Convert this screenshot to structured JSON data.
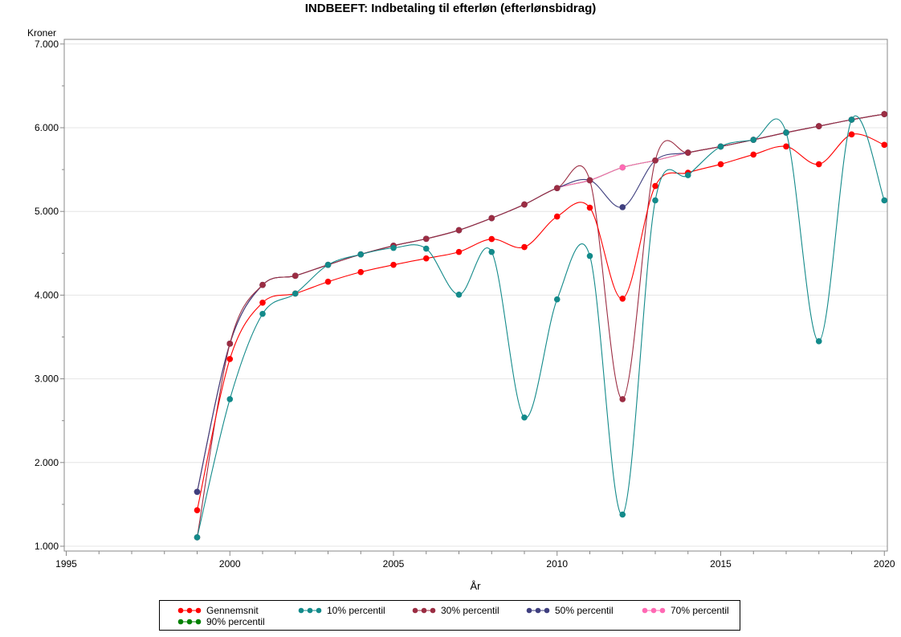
{
  "chart_data": {
    "type": "line",
    "title": "INDBEEFT:  Indbetaling til efterløn (efterlønsbidrag)",
    "xlabel": "År",
    "ylabel": "Kroner",
    "xlim": [
      1995,
      2020
    ],
    "ylim": [
      1000,
      7000
    ],
    "x_ticks": [
      "1995",
      "2000",
      "2005",
      "2010",
      "2015",
      "2020"
    ],
    "y_ticks": [
      "1.000",
      "2.000",
      "3.000",
      "4.000",
      "5.000",
      "6.000",
      "7.000"
    ],
    "grid": "horizontal",
    "legend_position": "bottom",
    "x": [
      1999,
      2000,
      2001,
      2002,
      2003,
      2004,
      2005,
      2006,
      2007,
      2008,
      2009,
      2010,
      2011,
      2012,
      2013,
      2014,
      2015,
      2016,
      2017,
      2018,
      2019,
      2020
    ],
    "series": [
      {
        "name": "Gennemsnit",
        "color": "#ff0000",
        "values": [
          1430,
          3237,
          3910,
          4019,
          4160,
          4276,
          4362,
          4439,
          4516,
          4670,
          4574,
          4939,
          5045,
          3958,
          5304,
          5462,
          5564,
          5679,
          5776,
          5564,
          5920,
          5795
        ]
      },
      {
        "name": "10% percentil",
        "color": "#138a8a",
        "values": [
          1106,
          2757,
          3776,
          4019,
          4362,
          4487,
          4564,
          4555,
          4006,
          4516,
          2538,
          3949,
          4468,
          1378,
          5132,
          5433,
          5775,
          5856,
          5942,
          3449,
          6096,
          5132
        ]
      },
      {
        "name": "30% percentil",
        "color": "#9b2d43",
        "values": [
          1106,
          3420,
          4122,
          4231,
          4362,
          4487,
          4590,
          4673,
          4776,
          4920,
          5083,
          5279,
          5372,
          2757,
          5609,
          5702,
          5775,
          5856,
          5942,
          6019,
          6096,
          6163
        ]
      },
      {
        "name": "50% percentil",
        "color": "#3f3f7f",
        "values": [
          1650,
          3420,
          4122,
          4231,
          4362,
          4487,
          4590,
          4673,
          4776,
          4920,
          5083,
          5279,
          5372,
          5051,
          5609,
          5702,
          5775,
          5856,
          5942,
          6019,
          6096,
          6163
        ]
      },
      {
        "name": "70% percentil",
        "color": "#ff69b4",
        "values": [
          1650,
          3420,
          4122,
          4231,
          4362,
          4487,
          4590,
          4673,
          4776,
          4920,
          5083,
          5279,
          5372,
          5526,
          5609,
          5702,
          5775,
          5856,
          5942,
          6019,
          6096,
          6163
        ]
      },
      {
        "name": "90% percentil",
        "color": "#008000",
        "values": [
          1650,
          3420,
          4122,
          4231,
          4362,
          4487,
          4590,
          4673,
          4776,
          4920,
          5083,
          5279,
          5372,
          5526,
          5609,
          5702,
          5775,
          5856,
          5942,
          6019,
          6096,
          6163
        ]
      }
    ]
  }
}
